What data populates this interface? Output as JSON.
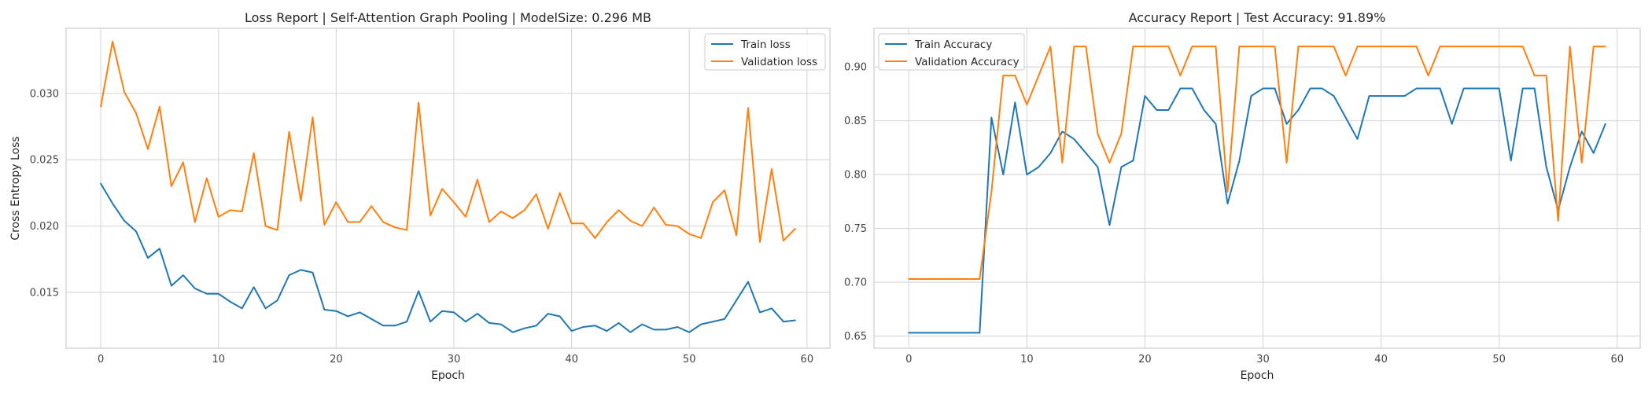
{
  "chart_data": [
    {
      "type": "line",
      "title": "Loss Report | Self-Attention Graph Pooling | ModelSize: 0.296 MB",
      "xlabel": "Epoch",
      "ylabel": "Cross Entropy Loss",
      "xlim": [
        -2.95,
        61.95
      ],
      "ylim": [
        0.0108,
        0.0349
      ],
      "xticks": [
        0,
        10,
        20,
        30,
        40,
        50,
        60
      ],
      "yticks": [
        0.015,
        0.02,
        0.025,
        0.03
      ],
      "ytick_labels": [
        "0.015",
        "0.020",
        "0.025",
        "0.030"
      ],
      "grid": true,
      "legend_position": "upper-right",
      "x": [
        0,
        1,
        2,
        3,
        4,
        5,
        6,
        7,
        8,
        9,
        10,
        11,
        12,
        13,
        14,
        15,
        16,
        17,
        18,
        19,
        20,
        21,
        22,
        23,
        24,
        25,
        26,
        27,
        28,
        29,
        30,
        31,
        32,
        33,
        34,
        35,
        36,
        37,
        38,
        39,
        40,
        41,
        42,
        43,
        44,
        45,
        46,
        47,
        48,
        49,
        50,
        51,
        52,
        53,
        54,
        55,
        56,
        57,
        58,
        59
      ],
      "series": [
        {
          "name": "Train loss",
          "color": "#1f77b4",
          "values": [
            0.0232,
            0.0217,
            0.0204,
            0.0196,
            0.0176,
            0.0183,
            0.0155,
            0.0163,
            0.0153,
            0.0149,
            0.0149,
            0.0143,
            0.0138,
            0.0154,
            0.0138,
            0.0144,
            0.0163,
            0.0167,
            0.0165,
            0.0137,
            0.0136,
            0.0132,
            0.0135,
            0.013,
            0.0125,
            0.0125,
            0.0128,
            0.0151,
            0.0128,
            0.0136,
            0.0135,
            0.0128,
            0.0134,
            0.0127,
            0.0126,
            0.012,
            0.0123,
            0.0125,
            0.0134,
            0.0132,
            0.0121,
            0.0124,
            0.0125,
            0.0121,
            0.0127,
            0.012,
            0.0126,
            0.0122,
            0.0122,
            0.0124,
            0.012,
            0.0126,
            0.0128,
            0.013,
            0.0144,
            0.0158,
            0.0135,
            0.0138,
            0.0128,
            0.0129
          ]
        },
        {
          "name": "Validation loss",
          "color": "#ff7f0e",
          "values": [
            0.029,
            0.0339,
            0.0301,
            0.0285,
            0.0258,
            0.029,
            0.023,
            0.0248,
            0.0203,
            0.0236,
            0.0207,
            0.0212,
            0.0211,
            0.0255,
            0.02,
            0.0197,
            0.0271,
            0.0219,
            0.0282,
            0.0201,
            0.0218,
            0.0203,
            0.0203,
            0.0215,
            0.0203,
            0.0199,
            0.0197,
            0.0293,
            0.0208,
            0.0228,
            0.0218,
            0.0207,
            0.0235,
            0.0203,
            0.0211,
            0.0206,
            0.0212,
            0.0224,
            0.0198,
            0.0225,
            0.0202,
            0.0202,
            0.0191,
            0.0203,
            0.0212,
            0.0204,
            0.02,
            0.0214,
            0.0201,
            0.02,
            0.0194,
            0.0191,
            0.0218,
            0.0227,
            0.0193,
            0.0289,
            0.0188,
            0.0243,
            0.0189,
            0.0198
          ]
        }
      ]
    },
    {
      "type": "line",
      "title": "Accuracy Report | Test Accuracy: 91.89%",
      "xlabel": "Epoch",
      "ylabel": "",
      "xlim": [
        -2.95,
        61.95
      ],
      "ylim": [
        0.6387,
        0.9359
      ],
      "xticks": [
        0,
        10,
        20,
        30,
        40,
        50,
        60
      ],
      "yticks": [
        0.65,
        0.7,
        0.75,
        0.8,
        0.85,
        0.9
      ],
      "ytick_labels": [
        "0.65",
        "0.70",
        "0.75",
        "0.80",
        "0.85",
        "0.90"
      ],
      "grid": true,
      "legend_position": "upper-left",
      "x": [
        0,
        1,
        2,
        3,
        4,
        5,
        6,
        7,
        8,
        9,
        10,
        11,
        12,
        13,
        14,
        15,
        16,
        17,
        18,
        19,
        20,
        21,
        22,
        23,
        24,
        25,
        26,
        27,
        28,
        29,
        30,
        31,
        32,
        33,
        34,
        35,
        36,
        37,
        38,
        39,
        40,
        41,
        42,
        43,
        44,
        45,
        46,
        47,
        48,
        49,
        50,
        51,
        52,
        53,
        54,
        55,
        56,
        57,
        58,
        59
      ],
      "series": [
        {
          "name": "Train Accuracy",
          "color": "#1f77b4",
          "values": [
            0.653,
            0.653,
            0.653,
            0.653,
            0.653,
            0.653,
            0.653,
            0.853,
            0.8,
            0.867,
            0.8,
            0.807,
            0.82,
            0.84,
            0.833,
            0.82,
            0.807,
            0.753,
            0.807,
            0.813,
            0.873,
            0.86,
            0.86,
            0.88,
            0.88,
            0.86,
            0.847,
            0.773,
            0.813,
            0.873,
            0.88,
            0.88,
            0.847,
            0.86,
            0.88,
            0.88,
            0.873,
            0.853,
            0.833,
            0.873,
            0.873,
            0.873,
            0.873,
            0.88,
            0.88,
            0.88,
            0.847,
            0.88,
            0.88,
            0.88,
            0.88,
            0.813,
            0.88,
            0.88,
            0.807,
            0.767,
            0.807,
            0.84,
            0.82,
            0.847
          ]
        },
        {
          "name": "Validation Accuracy",
          "color": "#ff7f0e",
          "values": [
            0.703,
            0.703,
            0.703,
            0.703,
            0.703,
            0.703,
            0.703,
            0.784,
            0.892,
            0.892,
            0.865,
            0.892,
            0.919,
            0.811,
            0.919,
            0.919,
            0.838,
            0.811,
            0.838,
            0.919,
            0.919,
            0.919,
            0.919,
            0.892,
            0.919,
            0.919,
            0.919,
            0.784,
            0.919,
            0.919,
            0.919,
            0.919,
            0.811,
            0.919,
            0.919,
            0.919,
            0.919,
            0.892,
            0.919,
            0.919,
            0.919,
            0.919,
            0.919,
            0.919,
            0.892,
            0.919,
            0.919,
            0.919,
            0.919,
            0.919,
            0.919,
            0.919,
            0.919,
            0.892,
            0.892,
            0.757,
            0.919,
            0.811,
            0.919,
            0.919
          ]
        }
      ]
    }
  ]
}
